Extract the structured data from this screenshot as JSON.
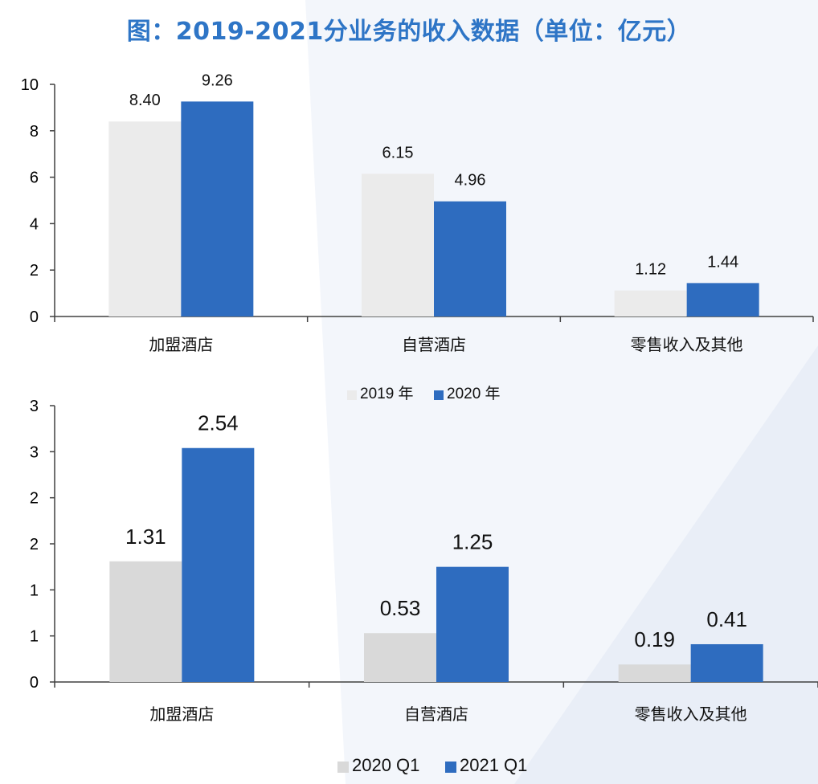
{
  "title": "图：2019-2021分业务的收入数据（单位：亿元）",
  "colors": {
    "title": "#2e75c6",
    "series_gray": "#d9d9d9",
    "series_blue": "#2e6cbf",
    "axis": "#404040"
  },
  "chart_data": [
    {
      "type": "bar",
      "categories": [
        "加盟酒店",
        "自营酒店",
        "零售收入及其他"
      ],
      "series": [
        {
          "name": "2019 年",
          "values": [
            8.4,
            6.15,
            1.12
          ],
          "labels": [
            "8.40",
            "6.15",
            "1.12"
          ],
          "color": "#ebebeb"
        },
        {
          "name": "2020 年",
          "values": [
            9.26,
            4.96,
            1.44
          ],
          "labels": [
            "9.26",
            "4.96",
            "1.44"
          ],
          "color": "#2e6cbf"
        }
      ],
      "yticks": [
        "0",
        "2",
        "4",
        "6",
        "8",
        "10"
      ],
      "ylim": [
        0,
        10
      ],
      "legend": "bottom"
    },
    {
      "type": "bar",
      "categories": [
        "加盟酒店",
        "自营酒店",
        "零售收入及其他"
      ],
      "series": [
        {
          "name": "2020 Q1",
          "values": [
            1.31,
            0.53,
            0.19
          ],
          "labels": [
            "1.31",
            "0.53",
            "0.19"
          ],
          "color": "#d9d9d9"
        },
        {
          "name": "2021 Q1",
          "values": [
            2.54,
            1.25,
            0.41
          ],
          "labels": [
            "2.54",
            "1.25",
            "0.41"
          ],
          "color": "#2e6cbf"
        }
      ],
      "yticks": [
        "0",
        "1",
        "1",
        "2",
        "2",
        "3",
        "3"
      ],
      "ylim": [
        0,
        3
      ],
      "legend": "bottom"
    }
  ]
}
